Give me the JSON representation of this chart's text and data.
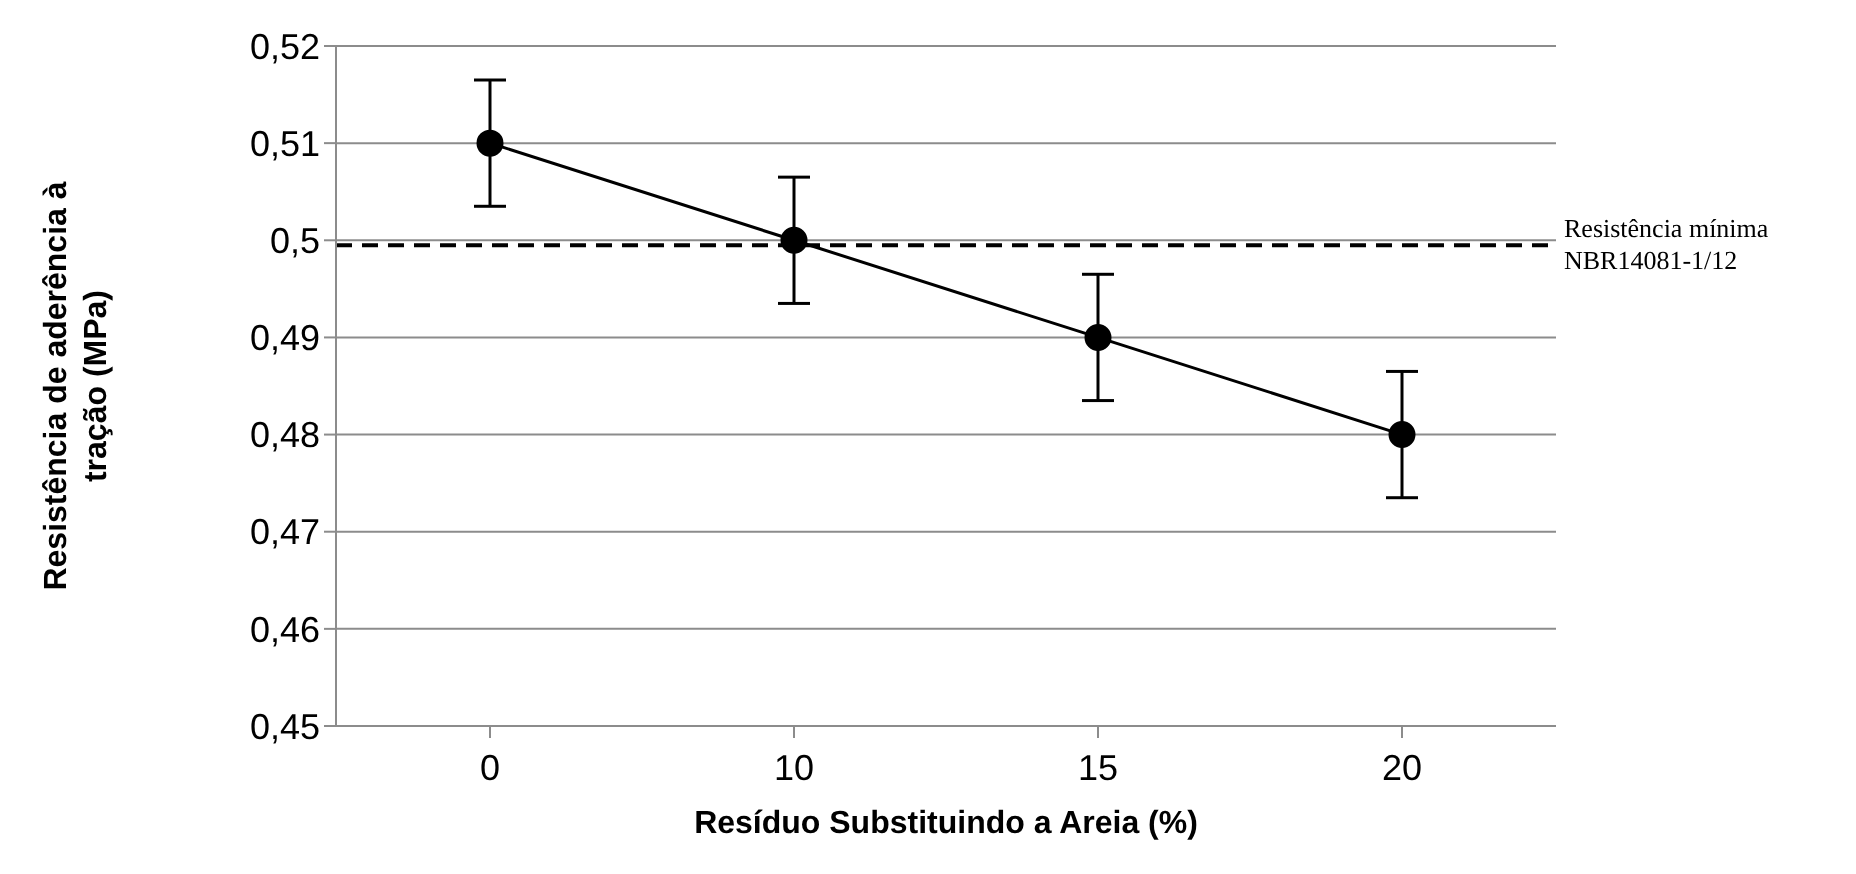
{
  "chart_data": {
    "type": "line",
    "xlabel": "Resíduo Substituindo a Areia (%)",
    "ylabel": "Resistência de aderência à tração (MPa)",
    "categories": [
      "0",
      "10",
      "15",
      "20"
    ],
    "series": [
      {
        "color": "#000000",
        "values": [
          0.51,
          0.5,
          0.49,
          0.48
        ],
        "errors": [
          0.0065,
          0.0065,
          0.0065,
          0.0065
        ]
      }
    ],
    "ylim": [
      0.45,
      0.52
    ],
    "yticks": [
      {
        "value": 0.45,
        "label": "0,45"
      },
      {
        "value": 0.46,
        "label": "0,46"
      },
      {
        "value": 0.47,
        "label": "0,47"
      },
      {
        "value": 0.48,
        "label": "0,48"
      },
      {
        "value": 0.49,
        "label": "0,49"
      },
      {
        "value": 0.5,
        "label": "0,5"
      },
      {
        "value": 0.51,
        "label": "0,51"
      },
      {
        "value": 0.52,
        "label": "0,52"
      }
    ],
    "ref_lines": [
      {
        "axis": "y",
        "value": 0.4995,
        "label": "Resistência mínima NBR14081-1/12",
        "color": "#000000",
        "line_style": "dashed"
      }
    ],
    "grid": "y",
    "legend": false,
    "marker": "circle",
    "line_style": "solid"
  }
}
